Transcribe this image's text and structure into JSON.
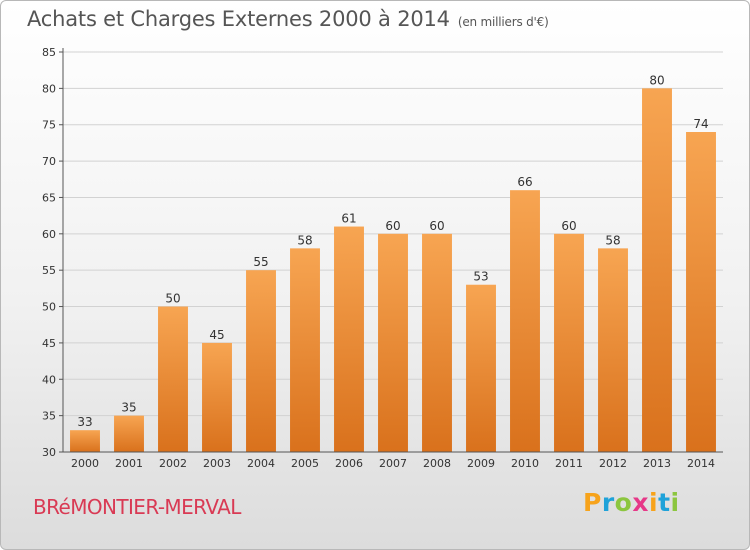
{
  "header": {
    "title": "Achats et Charges Externes 2000 à 2014",
    "unit": "(en milliers d'€)"
  },
  "footer": {
    "commune": "BRéMONTIER-MERVAL",
    "logo": "Proxiti",
    "logo_colors": [
      "#f7a31b",
      "#1fa2d9",
      "#8cc63f",
      "#e63888",
      "#f7a31b",
      "#1fa2d9",
      "#8cc63f"
    ]
  },
  "chart_data": {
    "type": "bar",
    "title": "Achats et Charges Externes 2000 à 2014",
    "categories": [
      "2000",
      "2001",
      "2002",
      "2003",
      "2004",
      "2005",
      "2006",
      "2007",
      "2008",
      "2009",
      "2010",
      "2011",
      "2012",
      "2013",
      "2014"
    ],
    "values": [
      33,
      35,
      50,
      45,
      55,
      58,
      61,
      60,
      60,
      53,
      66,
      60,
      58,
      80,
      74
    ],
    "ylim": [
      30,
      85
    ],
    "yticks": [
      30,
      35,
      40,
      45,
      50,
      55,
      60,
      65,
      70,
      75,
      80,
      85
    ],
    "grid": true,
    "bar_color_top": "#f7a552",
    "bar_color_bottom": "#d9711c"
  }
}
